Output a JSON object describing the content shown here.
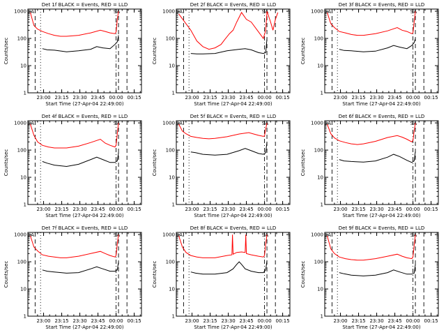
{
  "chart_data": [
    {
      "type": "line",
      "title": "Det 1f BLACK = Events, RED = LLD",
      "xlabel": "Start Time (27-Apr-04 22:49:00)",
      "ylabel": "Counts/sec",
      "ytick_labels": [
        "1",
        "10",
        "100",
        "1000"
      ],
      "xtick_labels": [
        "23:00",
        "23:15",
        "23:30",
        "23:45",
        "00:00",
        "00:15"
      ],
      "xlim": [
        -2,
        92
      ],
      "ylim": [
        1,
        1200
      ],
      "yscale": "log",
      "markers": [
        "SA",
        "SA"
      ],
      "series": [
        {
          "name": "Events",
          "color": "#000000",
          "x": [
            10,
            14,
            20,
            30,
            40,
            50,
            55,
            60,
            66,
            70,
            72,
            73
          ],
          "y": [
            42,
            38,
            37,
            32,
            35,
            40,
            50,
            45,
            42,
            60,
            75,
            130
          ]
        },
        {
          "name": "LLD",
          "color": "#ff0000",
          "x": [
            0,
            3,
            6,
            10,
            15,
            20,
            25,
            30,
            40,
            50,
            58,
            62,
            66,
            70,
            71,
            72,
            73
          ],
          "y": [
            900,
            300,
            220,
            180,
            150,
            130,
            120,
            120,
            130,
            160,
            200,
            180,
            160,
            150,
            170,
            500,
            1000
          ]
        }
      ]
    },
    {
      "type": "line",
      "title": "Det 2f BLACK = Events, RED = LLD",
      "xlabel": "Start Time (27-Apr-04 22:49:00)",
      "ylabel": "Counts/sec",
      "ytick_labels": [
        "1",
        "10",
        "100",
        "1000"
      ],
      "xtick_labels": [
        "23:00",
        "23:15",
        "23:30",
        "23:45",
        "00:00",
        "00:15"
      ],
      "xlim": [
        -2,
        92
      ],
      "ylim": [
        1,
        1200
      ],
      "yscale": "log",
      "markers": [
        "SA",
        "SA"
      ],
      "series": [
        {
          "name": "Events",
          "color": "#000000",
          "x": [
            10,
            15,
            20,
            30,
            40,
            50,
            55,
            60,
            66,
            70,
            72,
            73
          ],
          "y": [
            28,
            27,
            27,
            28,
            35,
            40,
            42,
            38,
            30,
            28,
            30,
            100
          ]
        },
        {
          "name": "LLD",
          "color": "#ff0000",
          "x": [
            0,
            5,
            10,
            15,
            20,
            25,
            30,
            35,
            38,
            42,
            45,
            48,
            52,
            56,
            60,
            65,
            70,
            72,
            73,
            76,
            78,
            80,
            82
          ],
          "y": [
            800,
            400,
            200,
            80,
            50,
            40,
            45,
            60,
            90,
            150,
            200,
            400,
            900,
            500,
            400,
            200,
            100,
            200,
            1000,
            400,
            200,
            500,
            900
          ]
        }
      ]
    },
    {
      "type": "line",
      "title": "Det 3f BLACK = Events, RED = LLD",
      "xlabel": "Start Time (27-Apr-04 22:49:00)",
      "ylabel": "Counts/sec",
      "ytick_labels": [
        "1",
        "10",
        "100",
        "1000"
      ],
      "xtick_labels": [
        "23:00",
        "23:15",
        "23:30",
        "23:45",
        "00:00",
        "00:15"
      ],
      "xlim": [
        -2,
        92
      ],
      "ylim": [
        1,
        1200
      ],
      "yscale": "log",
      "markers": [
        "SA",
        "SA"
      ],
      "series": [
        {
          "name": "Events",
          "color": "#000000",
          "x": [
            10,
            14,
            20,
            30,
            40,
            50,
            55,
            60,
            66,
            70,
            72,
            73
          ],
          "y": [
            40,
            36,
            35,
            32,
            34,
            45,
            55,
            48,
            42,
            55,
            70,
            100
          ]
        },
        {
          "name": "LLD",
          "color": "#ff0000",
          "x": [
            0,
            3,
            6,
            10,
            15,
            20,
            25,
            30,
            40,
            50,
            58,
            62,
            66,
            70,
            71,
            72,
            73
          ],
          "y": [
            900,
            350,
            250,
            180,
            160,
            140,
            130,
            130,
            150,
            190,
            250,
            200,
            180,
            150,
            160,
            400,
            1000
          ]
        }
      ]
    },
    {
      "type": "line",
      "title": "Det 4f BLACK = Events, RED = LLD",
      "xlabel": "Start Time (27-Apr-04 22:49:00)",
      "ylabel": "Counts/sec",
      "ytick_labels": [
        "1",
        "10",
        "100",
        "1000"
      ],
      "xtick_labels": [
        "23:00",
        "23:15",
        "23:30",
        "23:45",
        "00:00",
        "00:15"
      ],
      "xlim": [
        -2,
        92
      ],
      "ylim": [
        1,
        1200
      ],
      "yscale": "log",
      "markers": [
        "SA",
        "SA"
      ],
      "series": [
        {
          "name": "Events",
          "color": "#000000",
          "x": [
            10,
            14,
            20,
            30,
            40,
            50,
            55,
            60,
            66,
            70,
            72,
            73
          ],
          "y": [
            38,
            33,
            28,
            25,
            30,
            45,
            55,
            45,
            35,
            35,
            40,
            80
          ]
        },
        {
          "name": "LLD",
          "color": "#ff0000",
          "x": [
            0,
            3,
            6,
            10,
            15,
            20,
            25,
            30,
            40,
            50,
            58,
            62,
            66,
            70,
            71,
            72,
            73
          ],
          "y": [
            900,
            350,
            200,
            150,
            130,
            120,
            120,
            120,
            140,
            190,
            250,
            180,
            150,
            130,
            150,
            400,
            1000
          ]
        }
      ]
    },
    {
      "type": "line",
      "title": "Det 5f BLACK = Events, RED = LLD",
      "xlabel": "Start Time (27-Apr-04 22:49:00)",
      "ylabel": "Counts/sec",
      "ytick_labels": [
        "1",
        "10",
        "100",
        "1000"
      ],
      "xtick_labels": [
        "23:00",
        "23:15",
        "23:30",
        "23:45",
        "00:00",
        "00:15"
      ],
      "xlim": [
        -2,
        92
      ],
      "ylim": [
        1,
        1200
      ],
      "yscale": "log",
      "markers": [
        "SA",
        "SA"
      ],
      "series": [
        {
          "name": "Events",
          "color": "#000000",
          "x": [
            10,
            14,
            20,
            30,
            40,
            50,
            55,
            60,
            66,
            70,
            72,
            73
          ],
          "y": [
            85,
            80,
            70,
            65,
            70,
            95,
            115,
            95,
            75,
            70,
            80,
            200
          ]
        },
        {
          "name": "LLD",
          "color": "#ff0000",
          "x": [
            0,
            3,
            6,
            10,
            15,
            20,
            25,
            30,
            40,
            50,
            58,
            62,
            66,
            70,
            71,
            72,
            73
          ],
          "y": [
            900,
            500,
            400,
            320,
            290,
            270,
            260,
            270,
            310,
            390,
            440,
            390,
            350,
            320,
            330,
            600,
            1000
          ]
        }
      ]
    },
    {
      "type": "line",
      "title": "Det 6f BLACK = Events, RED = LLD",
      "xlabel": "Start Time (27-Apr-04 22:49:00)",
      "ylabel": "Counts/sec",
      "ytick_labels": [
        "1",
        "10",
        "100",
        "1000"
      ],
      "xtick_labels": [
        "23:00",
        "23:15",
        "23:30",
        "23:45",
        "00:00",
        "00:15"
      ],
      "xlim": [
        -2,
        92
      ],
      "ylim": [
        1,
        1200
      ],
      "yscale": "log",
      "markers": [
        "SA",
        "SA"
      ],
      "series": [
        {
          "name": "Events",
          "color": "#000000",
          "x": [
            10,
            14,
            20,
            30,
            40,
            50,
            55,
            60,
            66,
            70,
            72,
            73
          ],
          "y": [
            45,
            40,
            38,
            36,
            40,
            55,
            70,
            58,
            42,
            35,
            40,
            90
          ]
        },
        {
          "name": "LLD",
          "color": "#ff0000",
          "x": [
            0,
            3,
            6,
            10,
            15,
            20,
            25,
            30,
            40,
            50,
            58,
            62,
            66,
            70,
            71,
            72,
            73
          ],
          "y": [
            900,
            400,
            280,
            220,
            190,
            170,
            160,
            170,
            210,
            290,
            340,
            300,
            250,
            200,
            230,
            500,
            1000
          ]
        }
      ]
    },
    {
      "type": "line",
      "title": "Det 7f BLACK = Events, RED = LLD",
      "xlabel": "Start Time (27-Apr-04 22:49:00)",
      "ylabel": "Counts/sec",
      "ytick_labels": [
        "1",
        "10",
        "100",
        "1000"
      ],
      "xtick_labels": [
        "23:00",
        "23:15",
        "23:30",
        "23:45",
        "00:00",
        "00:15"
      ],
      "xlim": [
        -2,
        92
      ],
      "ylim": [
        1,
        1200
      ],
      "yscale": "log",
      "markers": [
        "SA",
        "SA"
      ],
      "series": [
        {
          "name": "Events",
          "color": "#000000",
          "x": [
            10,
            14,
            20,
            30,
            40,
            50,
            55,
            60,
            66,
            70,
            72,
            73
          ],
          "y": [
            50,
            45,
            42,
            38,
            40,
            55,
            65,
            55,
            45,
            45,
            50,
            100
          ]
        },
        {
          "name": "LLD",
          "color": "#ff0000",
          "x": [
            0,
            3,
            6,
            10,
            15,
            20,
            25,
            30,
            40,
            50,
            58,
            62,
            66,
            70,
            71,
            72,
            73
          ],
          "y": [
            900,
            350,
            250,
            180,
            160,
            150,
            140,
            140,
            160,
            200,
            240,
            200,
            170,
            150,
            170,
            450,
            1000
          ]
        }
      ]
    },
    {
      "type": "line",
      "title": "Det 8f BLACK = Events, RED = LLD",
      "xlabel": "Start Time (27-Apr-04 22:49:00)",
      "ylabel": "Counts/sec",
      "ytick_labels": [
        "1",
        "10",
        "100",
        "1000"
      ],
      "xtick_labels": [
        "23:00",
        "23:15",
        "23:30",
        "23:45",
        "00:00",
        "00:15"
      ],
      "xlim": [
        -2,
        92
      ],
      "ylim": [
        1,
        1200
      ],
      "yscale": "log",
      "markers": [
        "SA",
        "SA"
      ],
      "series": [
        {
          "name": "Events",
          "color": "#000000",
          "x": [
            10,
            14,
            20,
            30,
            40,
            45,
            48,
            50,
            52,
            55,
            60,
            66,
            70,
            72,
            73
          ],
          "y": [
            42,
            38,
            35,
            35,
            40,
            55,
            80,
            100,
            80,
            55,
            45,
            40,
            40,
            50,
            110
          ]
        },
        {
          "name": "LLD",
          "color": "#ff0000",
          "x": [
            0,
            3,
            6,
            10,
            15,
            20,
            25,
            30,
            40,
            44,
            44.5,
            45,
            48,
            52,
            55,
            55.5,
            56,
            60,
            66,
            70,
            71,
            72,
            73
          ],
          "y": [
            900,
            350,
            220,
            170,
            150,
            140,
            140,
            140,
            170,
            180,
            1000,
            190,
            220,
            230,
            220,
            1000,
            200,
            180,
            160,
            150,
            170,
            450,
            1000
          ]
        }
      ]
    },
    {
      "type": "line",
      "title": "Det 9f BLACK = Events, RED = LLD",
      "xlabel": "Start Time (27-Apr-04 22:49:00)",
      "ylabel": "Counts/sec",
      "ytick_labels": [
        "1",
        "10",
        "100",
        "1000"
      ],
      "xtick_labels": [
        "23:00",
        "23:15",
        "23:30",
        "23:45",
        "00:00",
        "00:15"
      ],
      "xlim": [
        -2,
        92
      ],
      "ylim": [
        1,
        1200
      ],
      "yscale": "log",
      "markers": [
        "SA",
        "SA"
      ],
      "series": [
        {
          "name": "Events",
          "color": "#000000",
          "x": [
            10,
            14,
            20,
            30,
            40,
            50,
            55,
            60,
            66,
            70,
            72,
            73
          ],
          "y": [
            40,
            36,
            32,
            30,
            32,
            40,
            50,
            42,
            35,
            35,
            38,
            80
          ]
        },
        {
          "name": "LLD",
          "color": "#ff0000",
          "x": [
            0,
            3,
            6,
            10,
            15,
            20,
            25,
            30,
            40,
            50,
            58,
            62,
            66,
            70,
            71,
            72,
            73
          ],
          "y": [
            900,
            300,
            200,
            150,
            130,
            120,
            115,
            115,
            130,
            160,
            190,
            160,
            140,
            130,
            150,
            400,
            1000
          ]
        }
      ]
    }
  ]
}
